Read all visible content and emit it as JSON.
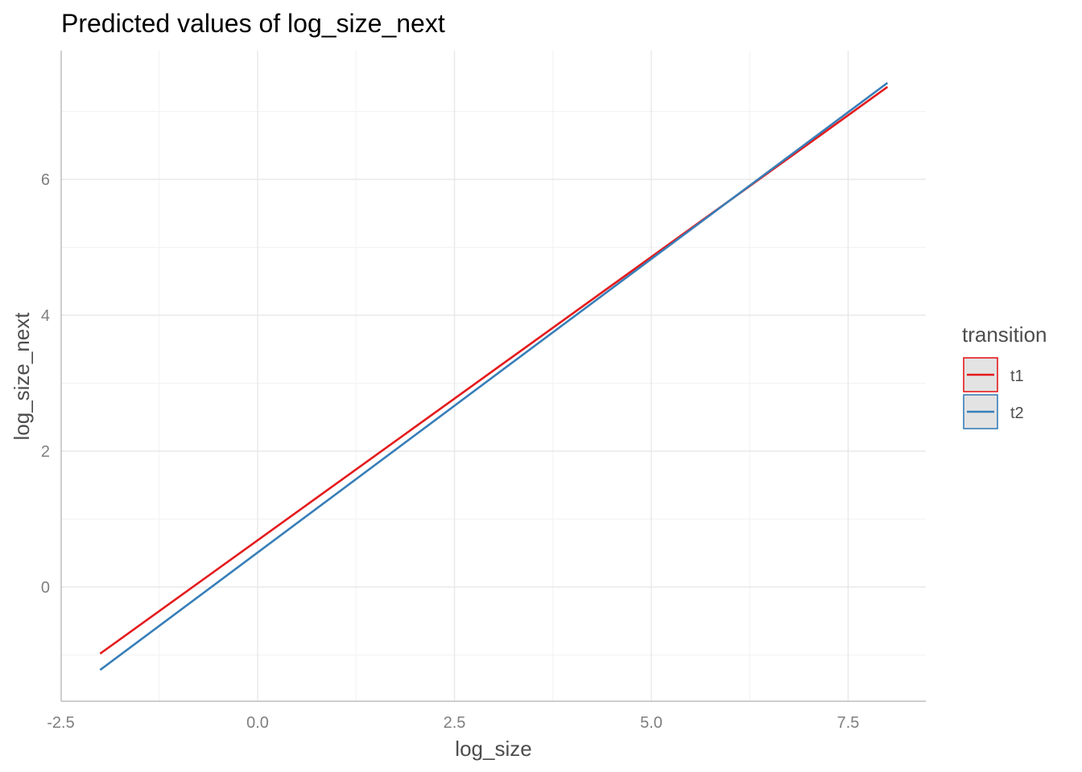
{
  "chart_data": {
    "type": "line",
    "title": "Predicted values of log_size_next",
    "xlabel": "log_size",
    "ylabel": "log_size_next",
    "xlim": [
      -2.5,
      8.5
    ],
    "ylim": [
      -1.7,
      7.9
    ],
    "x_ticks": [
      -2.5,
      0.0,
      2.5,
      5.0,
      7.5
    ],
    "x_tick_labels": [
      "-2.5",
      "0.0",
      "2.5",
      "5.0",
      "7.5"
    ],
    "y_ticks": [
      0,
      2,
      4,
      6
    ],
    "y_tick_labels": [
      "0",
      "2",
      "4",
      "6"
    ],
    "x_minor_ticks": [
      -1.25,
      1.25,
      3.75,
      6.25
    ],
    "y_minor_ticks": [
      -1,
      1,
      3,
      5,
      7
    ],
    "grid": true,
    "legend": {
      "title": "transition",
      "position": "right"
    },
    "series": [
      {
        "name": "t1",
        "color": "#e41a1c",
        "x": [
          -2,
          8
        ],
        "y": [
          -0.98,
          7.36
        ]
      },
      {
        "name": "t2",
        "color": "#377eb8",
        "x": [
          -2,
          8
        ],
        "y": [
          -1.22,
          7.42
        ]
      }
    ]
  }
}
